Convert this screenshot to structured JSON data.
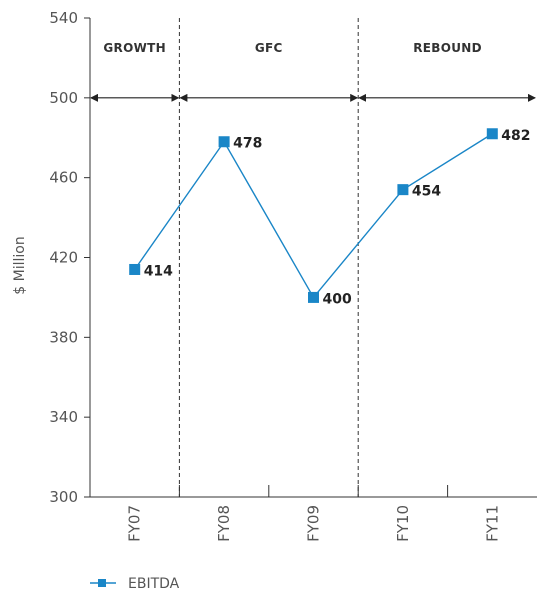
{
  "chart_data": {
    "type": "line",
    "categories": [
      "FY07",
      "FY08",
      "FY09",
      "FY10",
      "FY11"
    ],
    "series": [
      {
        "name": "EBITDA",
        "values": [
          414,
          478,
          400,
          454,
          482
        ],
        "color": "#1a86c7"
      }
    ],
    "data_labels": [
      "414",
      "478",
      "400",
      "454",
      "482"
    ],
    "ylabel": "$ Million",
    "ylim": [
      300,
      540
    ],
    "yticks": [
      300,
      340,
      380,
      420,
      460,
      500,
      540
    ],
    "grid": false,
    "legend": "bottom-left",
    "phases": [
      {
        "label": "GROWTH",
        "from": 0,
        "to": 1
      },
      {
        "label": "GFC",
        "from": 1,
        "to": 3
      },
      {
        "label": "REBOUND",
        "from": 3,
        "to": 5
      }
    ],
    "phase_arrow_value": 500,
    "phase_dividers_at_category_boundaries": [
      1,
      3
    ]
  }
}
